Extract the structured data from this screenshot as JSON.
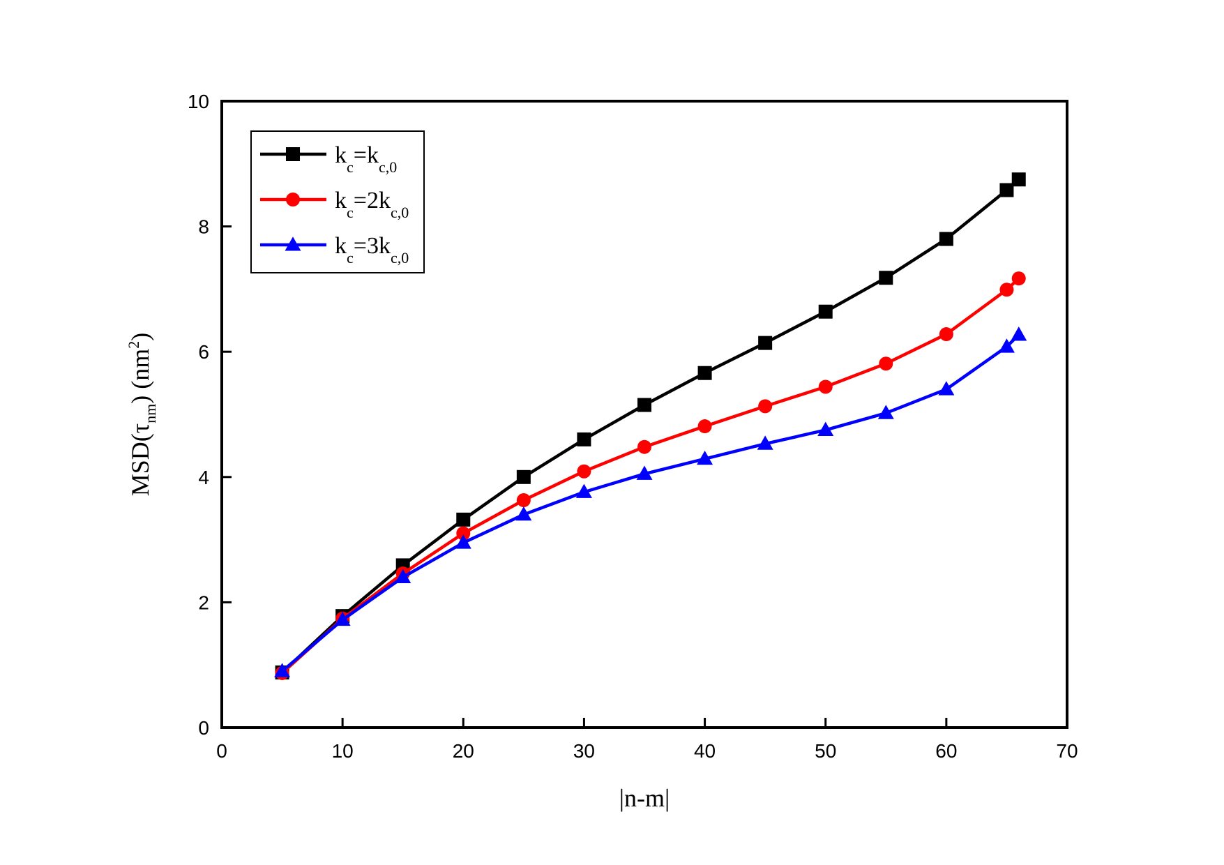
{
  "chart_data": {
    "type": "line",
    "xlabel": "|n-m|",
    "ylabel_main": "MSD(τ",
    "ylabel_sub": "nm",
    "ylabel_unit_main": ") (nm",
    "ylabel_unit_sup": "2",
    "ylabel_unit_close": ")",
    "xlim": [
      0,
      70
    ],
    "ylim": [
      0,
      10
    ],
    "xticks": [
      0,
      10,
      20,
      30,
      40,
      50,
      60,
      70
    ],
    "yticks": [
      0,
      2,
      4,
      6,
      8,
      10
    ],
    "grid": false,
    "legend_position": "top-left",
    "x": [
      5,
      10,
      15,
      20,
      25,
      30,
      35,
      40,
      45,
      50,
      55,
      60,
      65,
      66
    ],
    "series": [
      {
        "legend": {
          "k": "k",
          "sub1": "c",
          "eq": "=k",
          "sub2": "c,0"
        },
        "color": "#000000",
        "marker": "square",
        "values": [
          0.88,
          1.78,
          2.59,
          3.32,
          4.0,
          4.6,
          5.15,
          5.66,
          6.14,
          6.64,
          7.18,
          7.8,
          8.58,
          8.75
        ]
      },
      {
        "legend": {
          "k": "k",
          "sub1": "c",
          "eq": "=2k",
          "sub2": "c,0"
        },
        "color": "#ff0000",
        "marker": "circle",
        "values": [
          0.87,
          1.74,
          2.46,
          3.1,
          3.63,
          4.09,
          4.48,
          4.81,
          5.13,
          5.44,
          5.81,
          6.28,
          6.99,
          7.17
        ]
      },
      {
        "legend": {
          "k": "k",
          "sub1": "c",
          "eq": "=3k",
          "sub2": "c,0"
        },
        "color": "#0000ff",
        "marker": "triangle",
        "values": [
          0.9,
          1.72,
          2.4,
          2.95,
          3.4,
          3.76,
          4.05,
          4.29,
          4.53,
          4.75,
          5.02,
          5.4,
          6.08,
          6.27
        ]
      }
    ]
  }
}
